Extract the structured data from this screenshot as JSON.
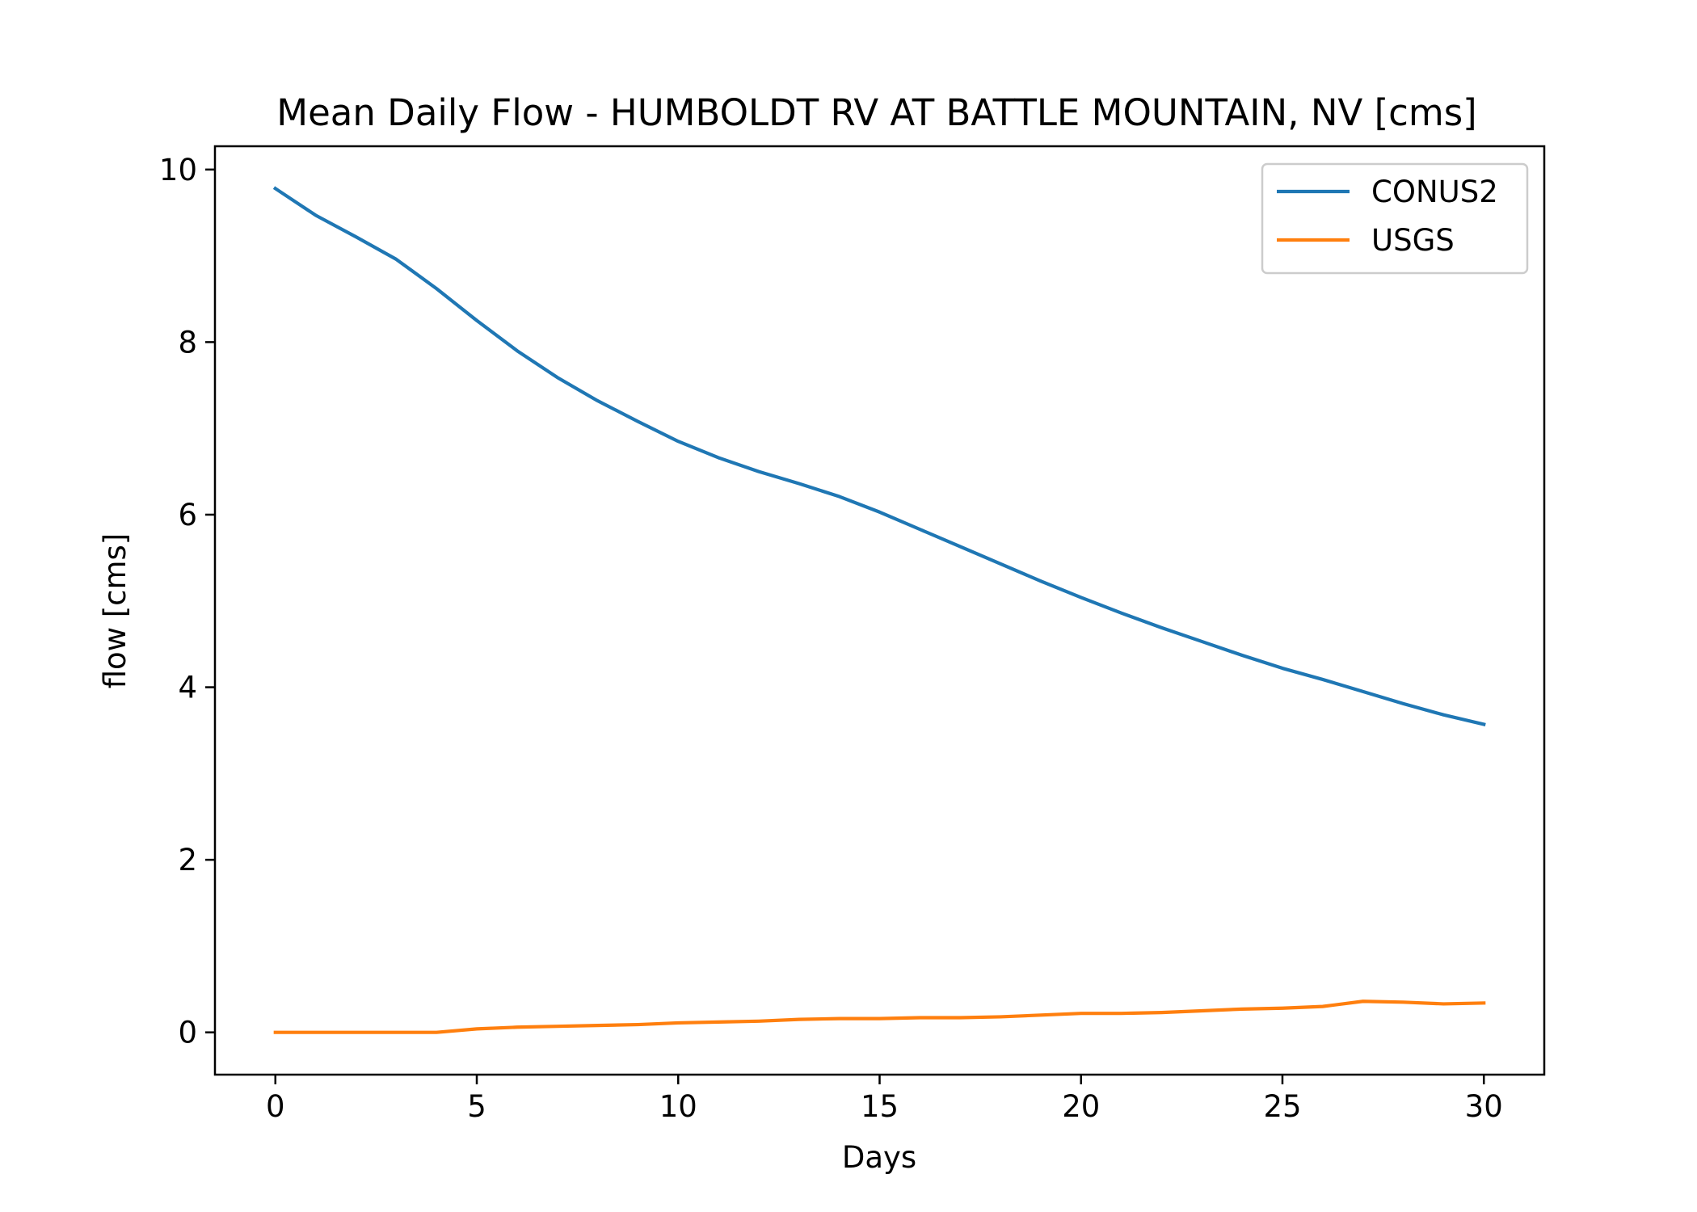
{
  "chart_data": {
    "type": "line",
    "title": "Mean Daily Flow - HUMBOLDT RV AT BATTLE MOUNTAIN, NV [cms]",
    "xlabel": "Days",
    "ylabel": "flow [cms]",
    "xlim": [
      -1.5,
      31.5
    ],
    "ylim": [
      -0.49,
      10.27
    ],
    "xticks": [
      0,
      5,
      10,
      15,
      20,
      25,
      30
    ],
    "yticks": [
      0,
      2,
      4,
      6,
      8,
      10
    ],
    "grid": false,
    "legend_position": "top-right",
    "x": [
      0,
      1,
      2,
      3,
      4,
      5,
      6,
      7,
      8,
      9,
      10,
      11,
      12,
      13,
      14,
      15,
      16,
      17,
      18,
      19,
      20,
      21,
      22,
      23,
      24,
      25,
      26,
      27,
      28,
      29,
      30
    ],
    "series": [
      {
        "name": "CONUS2",
        "color": "#1f77b4",
        "values": [
          9.78,
          9.47,
          9.22,
          8.96,
          8.62,
          8.25,
          7.9,
          7.59,
          7.32,
          7.08,
          6.85,
          6.66,
          6.5,
          6.36,
          6.21,
          6.03,
          5.83,
          5.63,
          5.43,
          5.23,
          5.04,
          4.86,
          4.69,
          4.53,
          4.37,
          4.22,
          4.09,
          3.95,
          3.81,
          3.68,
          3.57
        ]
      },
      {
        "name": "USGS",
        "color": "#ff7f0e",
        "values": [
          0.0,
          0.0,
          0.0,
          0.0,
          0.0,
          0.04,
          0.06,
          0.07,
          0.08,
          0.09,
          0.11,
          0.12,
          0.13,
          0.15,
          0.16,
          0.16,
          0.17,
          0.17,
          0.18,
          0.2,
          0.22,
          0.22,
          0.23,
          0.25,
          0.27,
          0.28,
          0.3,
          0.36,
          0.35,
          0.33,
          0.34
        ]
      }
    ]
  }
}
